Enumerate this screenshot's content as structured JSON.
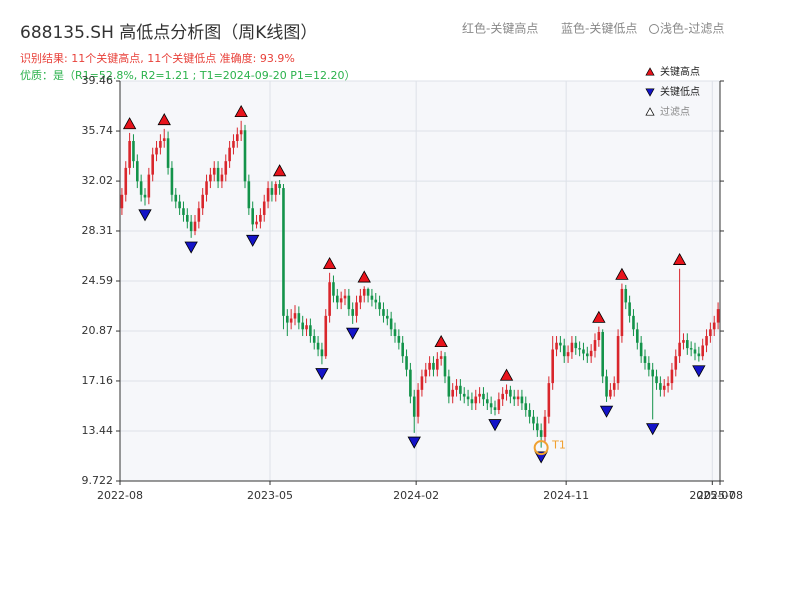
{
  "chart_data": {
    "type": "candlestick",
    "title": "688135.SH 高低点分析图（周K线图）",
    "header_legend": [
      "红色-关键高点",
      "蓝色-关键低点",
      "浅色-过滤点"
    ],
    "result_text": "识别结果: 11个关键高点, 11个关键低点   准确度: 93.9%",
    "quality_text": "优质：是（R1=52.8%, R2=1.21 ; T1=2024-09-20 P1=12.20）",
    "up_color": "#d9262c",
    "down_color": "#13934a",
    "open": [
      30.0,
      31.0,
      33.0,
      35.0,
      33.5,
      32.0,
      31.0,
      30.8,
      32.5,
      34.0,
      34.5,
      35.0,
      35.2,
      33.0,
      31.0,
      30.5,
      30.0,
      29.5,
      29.0,
      28.3,
      29.0,
      30.0,
      31.0,
      32.0,
      32.5,
      33.0,
      32.0,
      32.5,
      33.5,
      34.5,
      35.0,
      35.5,
      35.8,
      32.0,
      30.0,
      28.8,
      29.0,
      29.5,
      30.5,
      31.5,
      31.0,
      31.8,
      31.5,
      22.0,
      21.5,
      21.8,
      22.2,
      21.5,
      21.0,
      21.3,
      20.5,
      20.0,
      19.5,
      19.0,
      22.0,
      24.5,
      23.5,
      23.0,
      23.3,
      23.5,
      22.5,
      22.0,
      23.0,
      23.5,
      24.0,
      23.5,
      23.2,
      23.0,
      22.5,
      22.0,
      21.8,
      21.0,
      20.5,
      20.0,
      19.0,
      18.0,
      16.0,
      14.5,
      16.5,
      17.5,
      18.0,
      18.5,
      18.0,
      18.8,
      19.0,
      17.5,
      16.0,
      16.5,
      16.8,
      16.2,
      16.0,
      15.8,
      15.5,
      16.0,
      16.2,
      15.8,
      15.5,
      15.2,
      15.0,
      15.8,
      16.2,
      16.5,
      16.0,
      15.8,
      16.0,
      15.5,
      15.0,
      14.5,
      14.0,
      13.5,
      13.0,
      14.5,
      17.0,
      19.5,
      20.0,
      19.8,
      19.0,
      19.3,
      20.0,
      19.6,
      19.5,
      19.2,
      19.0,
      19.4,
      20.2,
      20.8,
      17.5,
      16.0,
      16.5,
      17.0,
      20.5,
      24.0,
      23.0,
      22.0,
      21.0,
      20.0,
      19.0,
      18.5,
      18.0,
      17.5,
      17.0,
      16.5,
      16.8,
      17.0,
      18.0,
      19.0,
      20.0,
      20.2,
      19.6,
      19.5,
      19.2,
      19.0,
      19.8,
      20.5,
      21.0,
      21.5
    ],
    "high": [
      31.5,
      33.5,
      35.6,
      35.5,
      34.0,
      32.5,
      31.5,
      33.0,
      34.5,
      35.0,
      35.5,
      35.9,
      35.7,
      33.5,
      31.5,
      31.0,
      30.5,
      30.0,
      29.5,
      29.5,
      30.5,
      31.5,
      32.5,
      33.0,
      33.5,
      33.5,
      33.0,
      34.0,
      35.0,
      35.5,
      36.0,
      36.5,
      36.2,
      32.5,
      30.5,
      29.5,
      30.0,
      31.0,
      32.0,
      32.0,
      32.0,
      32.1,
      31.8,
      22.5,
      22.5,
      22.8,
      22.7,
      22.0,
      21.8,
      21.8,
      21.0,
      20.5,
      20.0,
      22.5,
      25.2,
      25.0,
      24.0,
      23.8,
      24.0,
      24.0,
      23.0,
      23.5,
      24.0,
      24.2,
      24.1,
      24.0,
      23.7,
      23.5,
      23.0,
      22.5,
      22.3,
      21.5,
      21.0,
      20.5,
      19.5,
      18.5,
      16.5,
      17.0,
      18.0,
      18.5,
      19.0,
      19.0,
      19.3,
      19.4,
      19.3,
      18.0,
      17.0,
      17.3,
      17.3,
      16.7,
      16.5,
      16.3,
      16.5,
      16.7,
      16.7,
      16.3,
      16.0,
      15.7,
      16.3,
      16.7,
      16.9,
      16.8,
      16.5,
      16.5,
      16.5,
      16.0,
      15.5,
      15.0,
      14.5,
      14.0,
      15.0,
      17.5,
      20.5,
      20.5,
      20.5,
      20.3,
      19.8,
      20.5,
      20.5,
      20.1,
      20.0,
      19.7,
      19.9,
      20.7,
      21.2,
      21.0,
      18.0,
      17.0,
      17.5,
      21.0,
      24.4,
      24.3,
      23.5,
      22.5,
      21.5,
      20.5,
      19.5,
      19.0,
      18.5,
      18.0,
      17.5,
      17.3,
      17.5,
      18.5,
      19.5,
      25.5,
      20.7,
      20.7,
      20.1,
      20.0,
      19.7,
      20.3,
      21.0,
      21.5,
      22.0,
      23.0
    ],
    "low": [
      29.5,
      30.5,
      32.5,
      33.0,
      31.5,
      30.5,
      30.2,
      30.3,
      32.0,
      33.5,
      34.0,
      34.5,
      32.5,
      30.5,
      30.0,
      29.5,
      29.0,
      28.5,
      27.8,
      28.0,
      28.5,
      29.5,
      30.5,
      31.5,
      32.0,
      31.5,
      31.5,
      32.0,
      33.0,
      34.0,
      34.5,
      35.0,
      31.5,
      29.5,
      28.3,
      28.5,
      28.5,
      29.0,
      30.0,
      30.5,
      30.5,
      31.0,
      21.0,
      20.5,
      21.0,
      21.3,
      21.0,
      20.5,
      20.5,
      20.0,
      19.5,
      19.0,
      18.4,
      18.8,
      21.5,
      23.0,
      22.5,
      22.5,
      22.8,
      22.0,
      21.4,
      21.5,
      22.5,
      23.0,
      23.0,
      22.7,
      22.5,
      22.0,
      21.5,
      21.3,
      20.5,
      20.0,
      19.5,
      18.5,
      17.5,
      15.5,
      13.3,
      14.0,
      16.0,
      17.0,
      17.5,
      17.5,
      17.5,
      18.3,
      17.0,
      15.5,
      15.5,
      16.0,
      15.7,
      15.5,
      15.3,
      15.0,
      15.0,
      15.5,
      15.3,
      15.0,
      14.7,
      14.6,
      14.7,
      15.3,
      15.7,
      15.5,
      15.3,
      15.3,
      15.0,
      14.5,
      14.0,
      13.5,
      13.0,
      12.2,
      12.5,
      14.0,
      16.5,
      19.0,
      19.3,
      18.5,
      18.5,
      18.8,
      19.1,
      19.0,
      18.7,
      18.5,
      18.5,
      18.9,
      19.7,
      17.0,
      15.6,
      15.8,
      16.0,
      16.5,
      20.0,
      22.5,
      21.5,
      20.5,
      19.5,
      18.5,
      18.0,
      17.5,
      14.3,
      16.5,
      16.0,
      16.0,
      16.3,
      16.5,
      17.5,
      18.5,
      19.5,
      19.1,
      19.0,
      18.7,
      18.6,
      18.7,
      19.3,
      20.0,
      20.5,
      21.0
    ],
    "close": [
      31.0,
      33.0,
      35.0,
      33.5,
      32.0,
      31.0,
      30.8,
      32.5,
      34.0,
      34.5,
      35.0,
      35.2,
      33.0,
      31.0,
      30.5,
      30.0,
      29.5,
      29.0,
      28.3,
      29.0,
      30.0,
      31.0,
      32.0,
      32.5,
      33.0,
      32.0,
      32.5,
      33.5,
      34.5,
      35.0,
      35.5,
      35.8,
      32.0,
      30.0,
      28.8,
      29.0,
      29.5,
      30.5,
      31.5,
      31.0,
      31.8,
      31.5,
      22.0,
      21.5,
      21.8,
      22.2,
      21.5,
      21.0,
      21.3,
      20.5,
      20.0,
      19.5,
      19.0,
      22.0,
      24.5,
      23.5,
      23.0,
      23.3,
      23.5,
      22.5,
      22.0,
      23.0,
      23.5,
      24.0,
      23.5,
      23.2,
      23.0,
      22.5,
      22.0,
      21.8,
      21.0,
      20.5,
      20.0,
      19.0,
      18.0,
      16.0,
      14.5,
      16.5,
      17.5,
      18.0,
      18.5,
      18.0,
      18.8,
      19.0,
      17.5,
      16.0,
      16.5,
      16.8,
      16.2,
      16.0,
      15.8,
      15.5,
      16.0,
      16.2,
      15.8,
      15.5,
      15.2,
      15.0,
      15.8,
      16.2,
      16.5,
      16.0,
      15.8,
      16.0,
      15.5,
      15.0,
      14.5,
      14.0,
      13.5,
      13.0,
      14.5,
      17.0,
      19.5,
      20.0,
      19.8,
      19.0,
      19.3,
      20.0,
      19.6,
      19.5,
      19.2,
      19.0,
      19.4,
      20.2,
      20.8,
      17.5,
      16.0,
      16.5,
      17.0,
      20.5,
      24.0,
      23.0,
      22.0,
      21.0,
      20.0,
      19.0,
      18.5,
      18.0,
      17.5,
      17.0,
      16.5,
      16.8,
      17.0,
      18.0,
      19.0,
      20.0,
      20.2,
      19.6,
      19.5,
      19.2,
      19.0,
      19.8,
      20.5,
      21.0,
      21.5,
      22.5
    ],
    "markers": [
      {
        "name": "关键高点",
        "color": "#e8141c",
        "shape": "up",
        "x": [
          2,
          11,
          31,
          41,
          54,
          63,
          83,
          100,
          124,
          130,
          145
        ],
        "values": [
          35.6,
          35.9,
          36.5,
          32.1,
          25.2,
          24.2,
          19.4,
          16.9,
          21.2,
          24.4,
          25.5
        ]
      },
      {
        "name": "关键低点",
        "color": "#1414c8",
        "shape": "down",
        "x": [
          6,
          18,
          34,
          52,
          60,
          76,
          97,
          109,
          126,
          138,
          150
        ],
        "values": [
          30.2,
          27.8,
          28.3,
          18.4,
          21.4,
          13.3,
          14.6,
          12.2,
          15.6,
          14.3,
          18.6
        ]
      },
      {
        "name": "过滤点",
        "color": "#ffffff",
        "shape": "up"
      }
    ],
    "annotation": {
      "label": "T1",
      "x": 109,
      "value": 12.2,
      "color": "#f0a030"
    },
    "xlim": [
      0,
      156
    ],
    "xticks": [
      {
        "value": 0,
        "label": "2022-08"
      },
      {
        "value": 39,
        "label": "2023-05"
      },
      {
        "value": 77,
        "label": "2024-02"
      },
      {
        "value": 116,
        "label": "2024-11"
      },
      {
        "value": 154,
        "label": "2025-07"
      },
      {
        "value": 156,
        "label": "2025-08"
      }
    ],
    "ylim": [
      9.722,
      39.46
    ],
    "yticks": [
      9.722,
      13.44,
      17.16,
      20.87,
      24.59,
      28.31,
      32.02,
      35.74,
      39.46
    ],
    "grid": true
  }
}
